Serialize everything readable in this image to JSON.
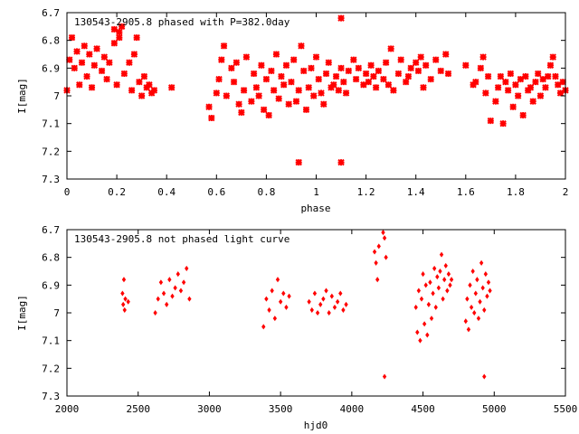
{
  "chart_data": [
    {
      "type": "scatter",
      "title": "130543-2905.8 phased with P=382.0day",
      "xlabel": "phase",
      "ylabel": "I[mag]",
      "xlim": [
        0,
        2
      ],
      "ylim": [
        7.3,
        6.7
      ],
      "y_inverted": true,
      "grid": false,
      "marker": "star",
      "color": "#ff0000",
      "x_ticks": [
        "0",
        "0.2",
        "0.4",
        "0.6",
        "0.8",
        "1",
        "1.2",
        "1.4",
        "1.6",
        "1.8",
        "2"
      ],
      "y_ticks": [
        "6.7",
        "6.8",
        "6.9",
        "7",
        "7.1",
        "7.2",
        "7.3"
      ],
      "x": [
        0.0,
        0.01,
        0.02,
        0.03,
        0.04,
        0.05,
        0.06,
        0.07,
        0.08,
        0.09,
        0.1,
        0.11,
        0.12,
        0.14,
        0.15,
        0.16,
        0.17,
        0.19,
        0.2,
        0.21,
        0.22,
        0.23,
        0.25,
        0.26,
        0.27,
        0.28,
        0.29,
        0.3,
        0.31,
        0.32,
        0.33,
        0.34,
        0.35,
        0.42,
        0.57,
        0.58,
        0.6,
        0.61,
        0.62,
        0.63,
        0.64,
        0.66,
        0.67,
        0.68,
        0.69,
        0.7,
        0.71,
        0.72,
        0.74,
        0.75,
        0.76,
        0.77,
        0.78,
        0.79,
        0.8,
        0.81,
        0.82,
        0.83,
        0.84,
        0.85,
        0.86,
        0.87,
        0.88,
        0.89,
        0.9,
        0.91,
        0.92,
        0.93,
        0.94,
        0.95,
        0.96,
        0.97,
        0.98,
        0.99,
        1.0,
        1.01,
        1.02,
        1.03,
        1.04,
        1.05,
        1.06,
        1.07,
        1.08,
        1.09,
        1.1,
        1.11,
        1.12,
        1.13,
        1.15,
        1.16,
        1.17,
        1.19,
        1.2,
        1.21,
        1.22,
        1.23,
        1.24,
        1.25,
        1.27,
        1.28,
        1.29,
        1.3,
        1.31,
        1.33,
        1.34,
        1.36,
        1.37,
        1.38,
        1.4,
        1.41,
        1.42,
        1.43,
        1.44,
        1.46,
        1.48,
        1.5,
        1.52,
        1.53,
        1.6,
        1.63,
        1.64,
        1.66,
        1.67,
        1.68,
        1.69,
        1.7,
        1.72,
        1.73,
        1.74,
        1.75,
        1.76,
        1.77,
        1.78,
        1.79,
        1.8,
        1.81,
        1.82,
        1.83,
        1.84,
        1.85,
        1.86,
        1.87,
        1.88,
        1.89,
        1.9,
        1.91,
        1.92,
        1.93,
        1.94,
        1.95,
        1.96,
        1.97,
        1.98,
        1.99,
        2.0,
        0.93,
        1.1,
        1.1,
        0.19,
        0.21
      ],
      "y": [
        6.98,
        6.87,
        6.79,
        6.9,
        6.84,
        6.96,
        6.88,
        6.82,
        6.93,
        6.85,
        6.97,
        6.89,
        6.83,
        6.91,
        6.86,
        6.94,
        6.88,
        6.81,
        6.96,
        6.77,
        6.75,
        6.92,
        6.88,
        6.98,
        6.85,
        6.79,
        6.95,
        7.0,
        6.93,
        6.97,
        6.96,
        6.99,
        6.98,
        6.97,
        7.04,
        7.08,
        6.99,
        6.94,
        6.87,
        6.82,
        7.0,
        6.9,
        6.95,
        6.88,
        7.03,
        7.06,
        6.98,
        6.86,
        7.02,
        6.92,
        6.97,
        7.0,
        6.89,
        7.05,
        6.94,
        7.07,
        6.91,
        6.98,
        6.85,
        7.01,
        6.93,
        6.96,
        6.89,
        7.03,
        6.95,
        6.87,
        7.02,
        6.98,
        6.82,
        6.91,
        7.05,
        6.97,
        6.9,
        7.0,
        6.86,
        6.94,
        6.99,
        7.03,
        6.92,
        6.88,
        6.97,
        6.96,
        6.93,
        6.98,
        6.9,
        6.95,
        6.99,
        6.91,
        6.87,
        6.94,
        6.9,
        6.96,
        6.92,
        6.95,
        6.89,
        6.93,
        6.97,
        6.91,
        6.94,
        6.88,
        6.96,
        6.83,
        6.98,
        6.92,
        6.87,
        6.95,
        6.93,
        6.9,
        6.88,
        6.91,
        6.86,
        6.97,
        6.89,
        6.94,
        6.87,
        6.91,
        6.85,
        6.92,
        6.89,
        6.96,
        6.95,
        6.9,
        6.86,
        6.99,
        6.93,
        7.09,
        7.02,
        6.97,
        6.93,
        7.1,
        6.95,
        6.98,
        6.92,
        7.04,
        6.96,
        7.0,
        6.94,
        7.07,
        6.93,
        6.98,
        6.97,
        7.02,
        6.95,
        6.92,
        7.0,
        6.94,
        6.97,
        6.93,
        6.89,
        6.86,
        6.93,
        6.96,
        6.99,
        6.95,
        6.98,
        7.24,
        7.24,
        6.72,
        6.76,
        6.79
      ],
      "n_points_approx": 420
    },
    {
      "type": "scatter",
      "title": "130543-2905.8 not phased light curve",
      "xlabel": "hjd0",
      "ylabel": "I[mag]",
      "xlim": [
        2000,
        5500
      ],
      "ylim": [
        7.3,
        6.7
      ],
      "y_inverted": true,
      "grid": false,
      "marker": "diamond",
      "color": "#ff0000",
      "x_ticks": [
        "2000",
        "2500",
        "3000",
        "3500",
        "4000",
        "4500",
        "5000",
        "5500"
      ],
      "y_ticks": [
        "6.7",
        "6.8",
        "6.9",
        "7",
        "7.1",
        "7.2",
        "7.3"
      ],
      "x": [
        2390,
        2395,
        2400,
        2405,
        2410,
        2430,
        2620,
        2640,
        2660,
        2680,
        2700,
        2720,
        2740,
        2760,
        2780,
        2800,
        2820,
        2840,
        2860,
        3380,
        3400,
        3420,
        3440,
        3460,
        3480,
        3500,
        3520,
        3540,
        3560,
        3700,
        3720,
        3740,
        3760,
        3780,
        3800,
        3820,
        3840,
        3860,
        3880,
        3900,
        3920,
        3940,
        3960,
        4160,
        4170,
        4180,
        4190,
        4220,
        4230,
        4240,
        4450,
        4460,
        4470,
        4480,
        4490,
        4500,
        4510,
        4520,
        4530,
        4540,
        4550,
        4560,
        4570,
        4580,
        4590,
        4600,
        4610,
        4620,
        4630,
        4640,
        4650,
        4660,
        4670,
        4680,
        4690,
        4700,
        4800,
        4810,
        4820,
        4830,
        4840,
        4850,
        4860,
        4870,
        4880,
        4890,
        4900,
        4910,
        4920,
        4930,
        4940,
        4950,
        4960,
        4970,
        4230,
        4930
      ],
      "y": [
        6.93,
        6.97,
        6.88,
        6.99,
        6.95,
        6.96,
        7.0,
        6.95,
        6.89,
        6.93,
        6.97,
        6.88,
        6.94,
        6.91,
        6.86,
        6.92,
        6.89,
        6.84,
        6.95,
        7.05,
        6.95,
        6.99,
        6.92,
        7.02,
        6.88,
        6.96,
        6.93,
        6.98,
        6.94,
        6.96,
        6.99,
        6.93,
        7.0,
        6.97,
        6.95,
        6.92,
        7.0,
        6.94,
        6.98,
        6.96,
        6.93,
        6.99,
        6.97,
        6.78,
        6.82,
        6.88,
        6.76,
        6.71,
        6.73,
        6.8,
        6.98,
        7.07,
        6.92,
        7.1,
        6.95,
        6.86,
        7.04,
        6.9,
        7.08,
        6.97,
        6.89,
        7.02,
        6.93,
        6.84,
        6.98,
        6.87,
        6.91,
        6.85,
        6.79,
        6.95,
        6.88,
        6.83,
        6.92,
        6.86,
        6.9,
        6.88,
        7.03,
        6.95,
        7.06,
        6.9,
        6.98,
        6.85,
        7.0,
        6.93,
        6.88,
        7.02,
        6.96,
        6.82,
        6.91,
        6.99,
        6.86,
        6.94,
        6.89,
        6.92,
        7.23,
        7.23
      ],
      "n_points_approx": 420
    }
  ]
}
